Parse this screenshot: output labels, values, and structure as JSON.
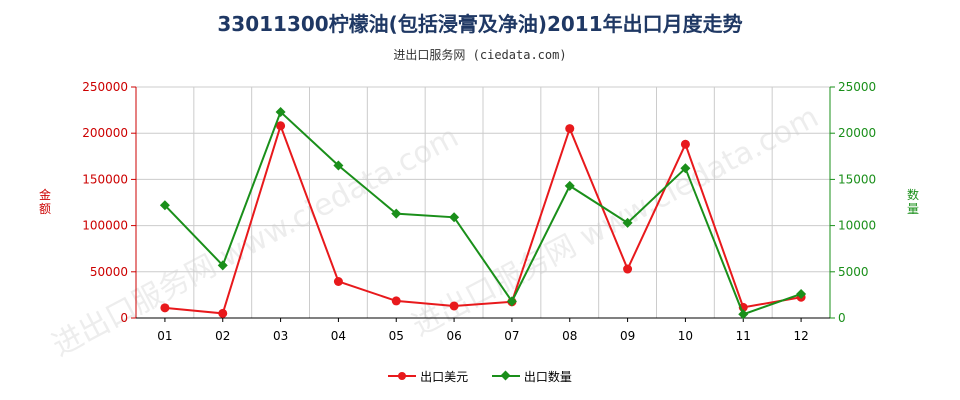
{
  "title": "33011300柠檬油(包括浸膏及净油)2011年出口月度走势",
  "subtitle": "进出口服务网 (ciedata.com)",
  "watermark": "进出口服务网 www.ciedata.com",
  "legend": {
    "export_value_label": "出口美元",
    "export_qty_label": "出口数量"
  },
  "colors": {
    "value_series": "#e8191c",
    "qty_series": "#1a8f1a",
    "left_axis": "#cc0000",
    "right_axis": "#1a8f1a",
    "grid": "#cccccc"
  },
  "chart_data": {
    "type": "line",
    "title": "33011300柠檬油(包括浸膏及净油)2011年出口月度走势",
    "x": [
      "01",
      "02",
      "03",
      "04",
      "05",
      "06",
      "07",
      "08",
      "09",
      "10",
      "11",
      "12"
    ],
    "y_left_label": "金额",
    "y_right_label": "数量",
    "y_left_lim": [
      0,
      250000
    ],
    "y_right_lim": [
      0,
      25000
    ],
    "y_left_ticks": [
      "0",
      "50000",
      "100000",
      "150000",
      "200000",
      "250000"
    ],
    "y_right_ticks": [
      "0",
      "5000",
      "10000",
      "15000",
      "20000",
      "25000"
    ],
    "grid": true,
    "legend_position": "bottom",
    "series": [
      {
        "name": "出口美元",
        "axis": "left",
        "marker": "circle",
        "values": [
          11000,
          5000,
          208000,
          39500,
          18500,
          13000,
          17500,
          205000,
          53000,
          188000,
          11500,
          22500
        ]
      },
      {
        "name": "出口数量",
        "axis": "right",
        "marker": "diamond",
        "values": [
          12200,
          5700,
          22300,
          16500,
          11300,
          10900,
          1800,
          14300,
          10300,
          16200,
          400,
          2600
        ]
      }
    ]
  }
}
